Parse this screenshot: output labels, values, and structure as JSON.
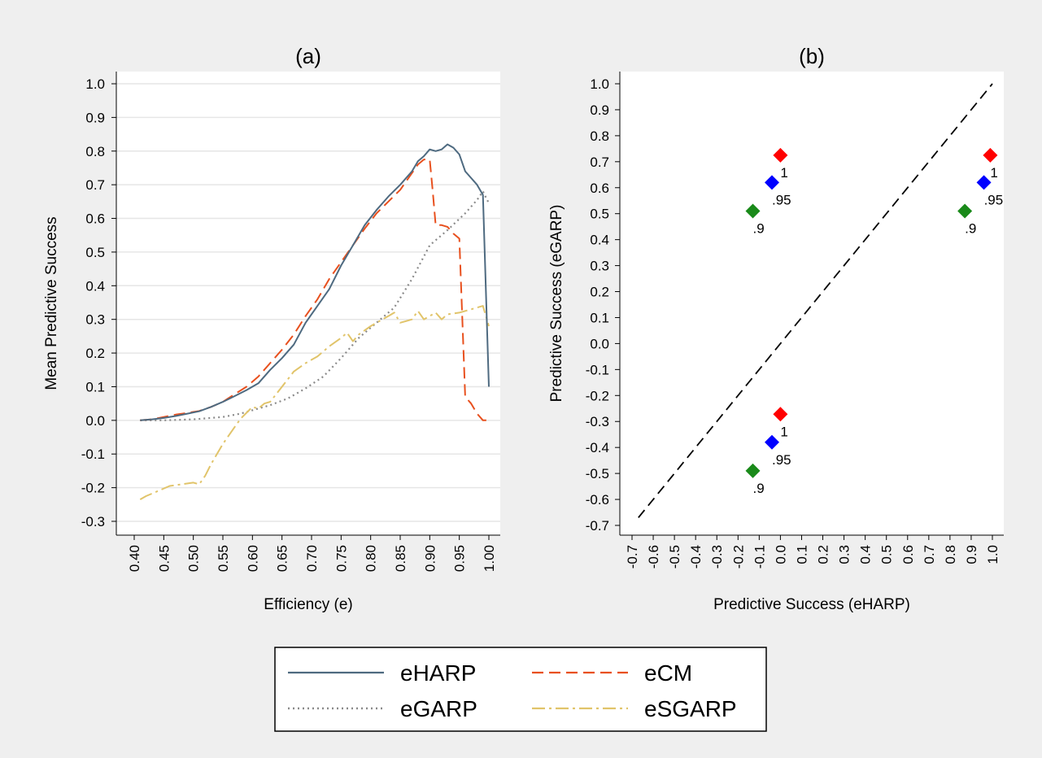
{
  "chart_data": [
    {
      "panel_title": "(a)",
      "type": "line",
      "xlabel": "Efficiency (e)",
      "ylabel": "Mean Predictive Success",
      "xlim": [
        0.4,
        1.0
      ],
      "ylim": [
        -0.3,
        1.0
      ],
      "xticks": [
        "0.40",
        "0.45",
        "0.50",
        "0.55",
        "0.60",
        "0.65",
        "0.70",
        "0.75",
        "0.80",
        "0.85",
        "0.90",
        "0.95",
        "1.00"
      ],
      "yticks": [
        "-0.3",
        "-0.2",
        "-0.1",
        "0.0",
        "0.1",
        "0.2",
        "0.3",
        "0.4",
        "0.5",
        "0.6",
        "0.7",
        "0.8",
        "0.9",
        "1.0"
      ],
      "grid": true,
      "series": [
        {
          "name": "eHARP",
          "color": "#4e6a80",
          "dash": "solid",
          "x": [
            0.41,
            0.43,
            0.45,
            0.47,
            0.49,
            0.51,
            0.53,
            0.55,
            0.57,
            0.59,
            0.61,
            0.63,
            0.65,
            0.67,
            0.69,
            0.71,
            0.73,
            0.75,
            0.77,
            0.79,
            0.81,
            0.83,
            0.85,
            0.87,
            0.88,
            0.89,
            0.9,
            0.91,
            0.92,
            0.93,
            0.94,
            0.95,
            0.96,
            0.97,
            0.98,
            0.99,
            1.0
          ],
          "y": [
            0.0,
            0.003,
            0.007,
            0.013,
            0.02,
            0.027,
            0.04,
            0.055,
            0.072,
            0.09,
            0.11,
            0.15,
            0.185,
            0.225,
            0.29,
            0.34,
            0.39,
            0.46,
            0.52,
            0.58,
            0.625,
            0.665,
            0.7,
            0.74,
            0.77,
            0.785,
            0.805,
            0.8,
            0.805,
            0.82,
            0.81,
            0.79,
            0.74,
            0.72,
            0.7,
            0.67,
            0.1
          ]
        },
        {
          "name": "eCM",
          "color": "#e8501e",
          "dash": "long",
          "x": [
            0.41,
            0.43,
            0.45,
            0.47,
            0.49,
            0.51,
            0.53,
            0.55,
            0.57,
            0.59,
            0.61,
            0.63,
            0.65,
            0.67,
            0.69,
            0.71,
            0.73,
            0.75,
            0.77,
            0.79,
            0.81,
            0.83,
            0.85,
            0.87,
            0.88,
            0.89,
            0.9,
            0.905,
            0.91,
            0.92,
            0.93,
            0.94,
            0.95,
            0.96,
            0.97,
            0.98,
            0.99,
            1.0
          ],
          "y": [
            0.0,
            0.003,
            0.01,
            0.017,
            0.022,
            0.028,
            0.04,
            0.055,
            0.078,
            0.1,
            0.13,
            0.17,
            0.21,
            0.255,
            0.31,
            0.36,
            0.42,
            0.47,
            0.52,
            0.57,
            0.615,
            0.65,
            0.685,
            0.735,
            0.76,
            0.775,
            0.775,
            0.68,
            0.58,
            0.58,
            0.575,
            0.555,
            0.54,
            0.07,
            0.05,
            0.02,
            0.0,
            0.0
          ]
        },
        {
          "name": "eGARP",
          "color": "#8a8a8a",
          "dash": "dot",
          "x": [
            0.41,
            0.45,
            0.5,
            0.55,
            0.58,
            0.6,
            0.63,
            0.66,
            0.69,
            0.72,
            0.75,
            0.78,
            0.81,
            0.84,
            0.87,
            0.9,
            0.93,
            0.96,
            0.98,
            0.99,
            1.0
          ],
          "y": [
            0.0,
            0.0,
            0.003,
            0.01,
            0.02,
            0.03,
            0.045,
            0.065,
            0.095,
            0.13,
            0.185,
            0.245,
            0.29,
            0.335,
            0.42,
            0.52,
            0.565,
            0.615,
            0.655,
            0.68,
            0.645
          ]
        },
        {
          "name": "eSGARP",
          "color": "#e1c46a",
          "dash": "dashdot",
          "x": [
            0.41,
            0.42,
            0.44,
            0.46,
            0.48,
            0.5,
            0.51,
            0.52,
            0.53,
            0.55,
            0.57,
            0.58,
            0.6,
            0.61,
            0.62,
            0.63,
            0.65,
            0.67,
            0.69,
            0.71,
            0.73,
            0.75,
            0.76,
            0.77,
            0.78,
            0.8,
            0.82,
            0.83,
            0.84,
            0.85,
            0.86,
            0.87,
            0.88,
            0.89,
            0.9,
            0.91,
            0.92,
            0.93,
            0.95,
            0.97,
            0.98,
            0.99,
            1.0
          ],
          "y": [
            -0.235,
            -0.225,
            -0.21,
            -0.195,
            -0.19,
            -0.185,
            -0.19,
            -0.165,
            -0.13,
            -0.07,
            -0.02,
            0.005,
            0.04,
            0.035,
            0.05,
            0.055,
            0.1,
            0.145,
            0.17,
            0.19,
            0.22,
            0.245,
            0.26,
            0.235,
            0.255,
            0.28,
            0.3,
            0.31,
            0.32,
            0.29,
            0.295,
            0.3,
            0.325,
            0.3,
            0.31,
            0.32,
            0.3,
            0.315,
            0.32,
            0.33,
            0.335,
            0.34,
            0.28
          ]
        }
      ]
    },
    {
      "panel_title": "(b)",
      "type": "scatter",
      "xlabel": "Predictive Success (eHARP)",
      "ylabel": "Predictive Success (eGARP)",
      "xlim": [
        -0.7,
        1.0
      ],
      "ylim": [
        -0.7,
        1.0
      ],
      "xticks": [
        "-0.7",
        "-0.6",
        "-0.5",
        "-0.4",
        "-0.3",
        "-0.2",
        "-0.1",
        "0.0",
        "0.1",
        "0.2",
        "0.3",
        "0.4",
        "0.5",
        "0.6",
        "0.7",
        "0.8",
        "0.9",
        "1.0"
      ],
      "yticks": [
        "-0.7",
        "-0.6",
        "-0.5",
        "-0.4",
        "-0.3",
        "-0.2",
        "-0.1",
        "0.0",
        "0.1",
        "0.2",
        "0.3",
        "0.4",
        "0.5",
        "0.6",
        "0.7",
        "0.8",
        "0.9",
        "1.0"
      ],
      "grid": false,
      "reference_line": {
        "x": [
          -0.67,
          1.0
        ],
        "y": [
          -0.67,
          1.0
        ],
        "style": "dashed",
        "color": "#000000"
      },
      "points": [
        {
          "x": 0.0,
          "y": 0.725,
          "label": "1",
          "color": "#ff0000"
        },
        {
          "x": -0.04,
          "y": 0.62,
          "label": ".95",
          "color": "#0000ff"
        },
        {
          "x": -0.13,
          "y": 0.51,
          "label": ".9",
          "color": "#1a8a1a"
        },
        {
          "x": 0.99,
          "y": 0.725,
          "label": "1",
          "color": "#ff0000"
        },
        {
          "x": 0.96,
          "y": 0.62,
          "label": ".95",
          "color": "#0000ff"
        },
        {
          "x": 0.87,
          "y": 0.51,
          "label": ".9",
          "color": "#1a8a1a"
        },
        {
          "x": 0.0,
          "y": -0.272,
          "label": "1",
          "color": "#ff0000"
        },
        {
          "x": -0.04,
          "y": -0.38,
          "label": ".95",
          "color": "#0000ff"
        },
        {
          "x": -0.13,
          "y": -0.49,
          "label": ".9",
          "color": "#1a8a1a"
        }
      ]
    }
  ],
  "legend": {
    "items": [
      {
        "label": "eHARP",
        "series": "eHARP"
      },
      {
        "label": "eCM",
        "series": "eCM"
      },
      {
        "label": "eGARP",
        "series": "eGARP"
      },
      {
        "label": "eSGARP",
        "series": "eSGARP"
      }
    ]
  }
}
